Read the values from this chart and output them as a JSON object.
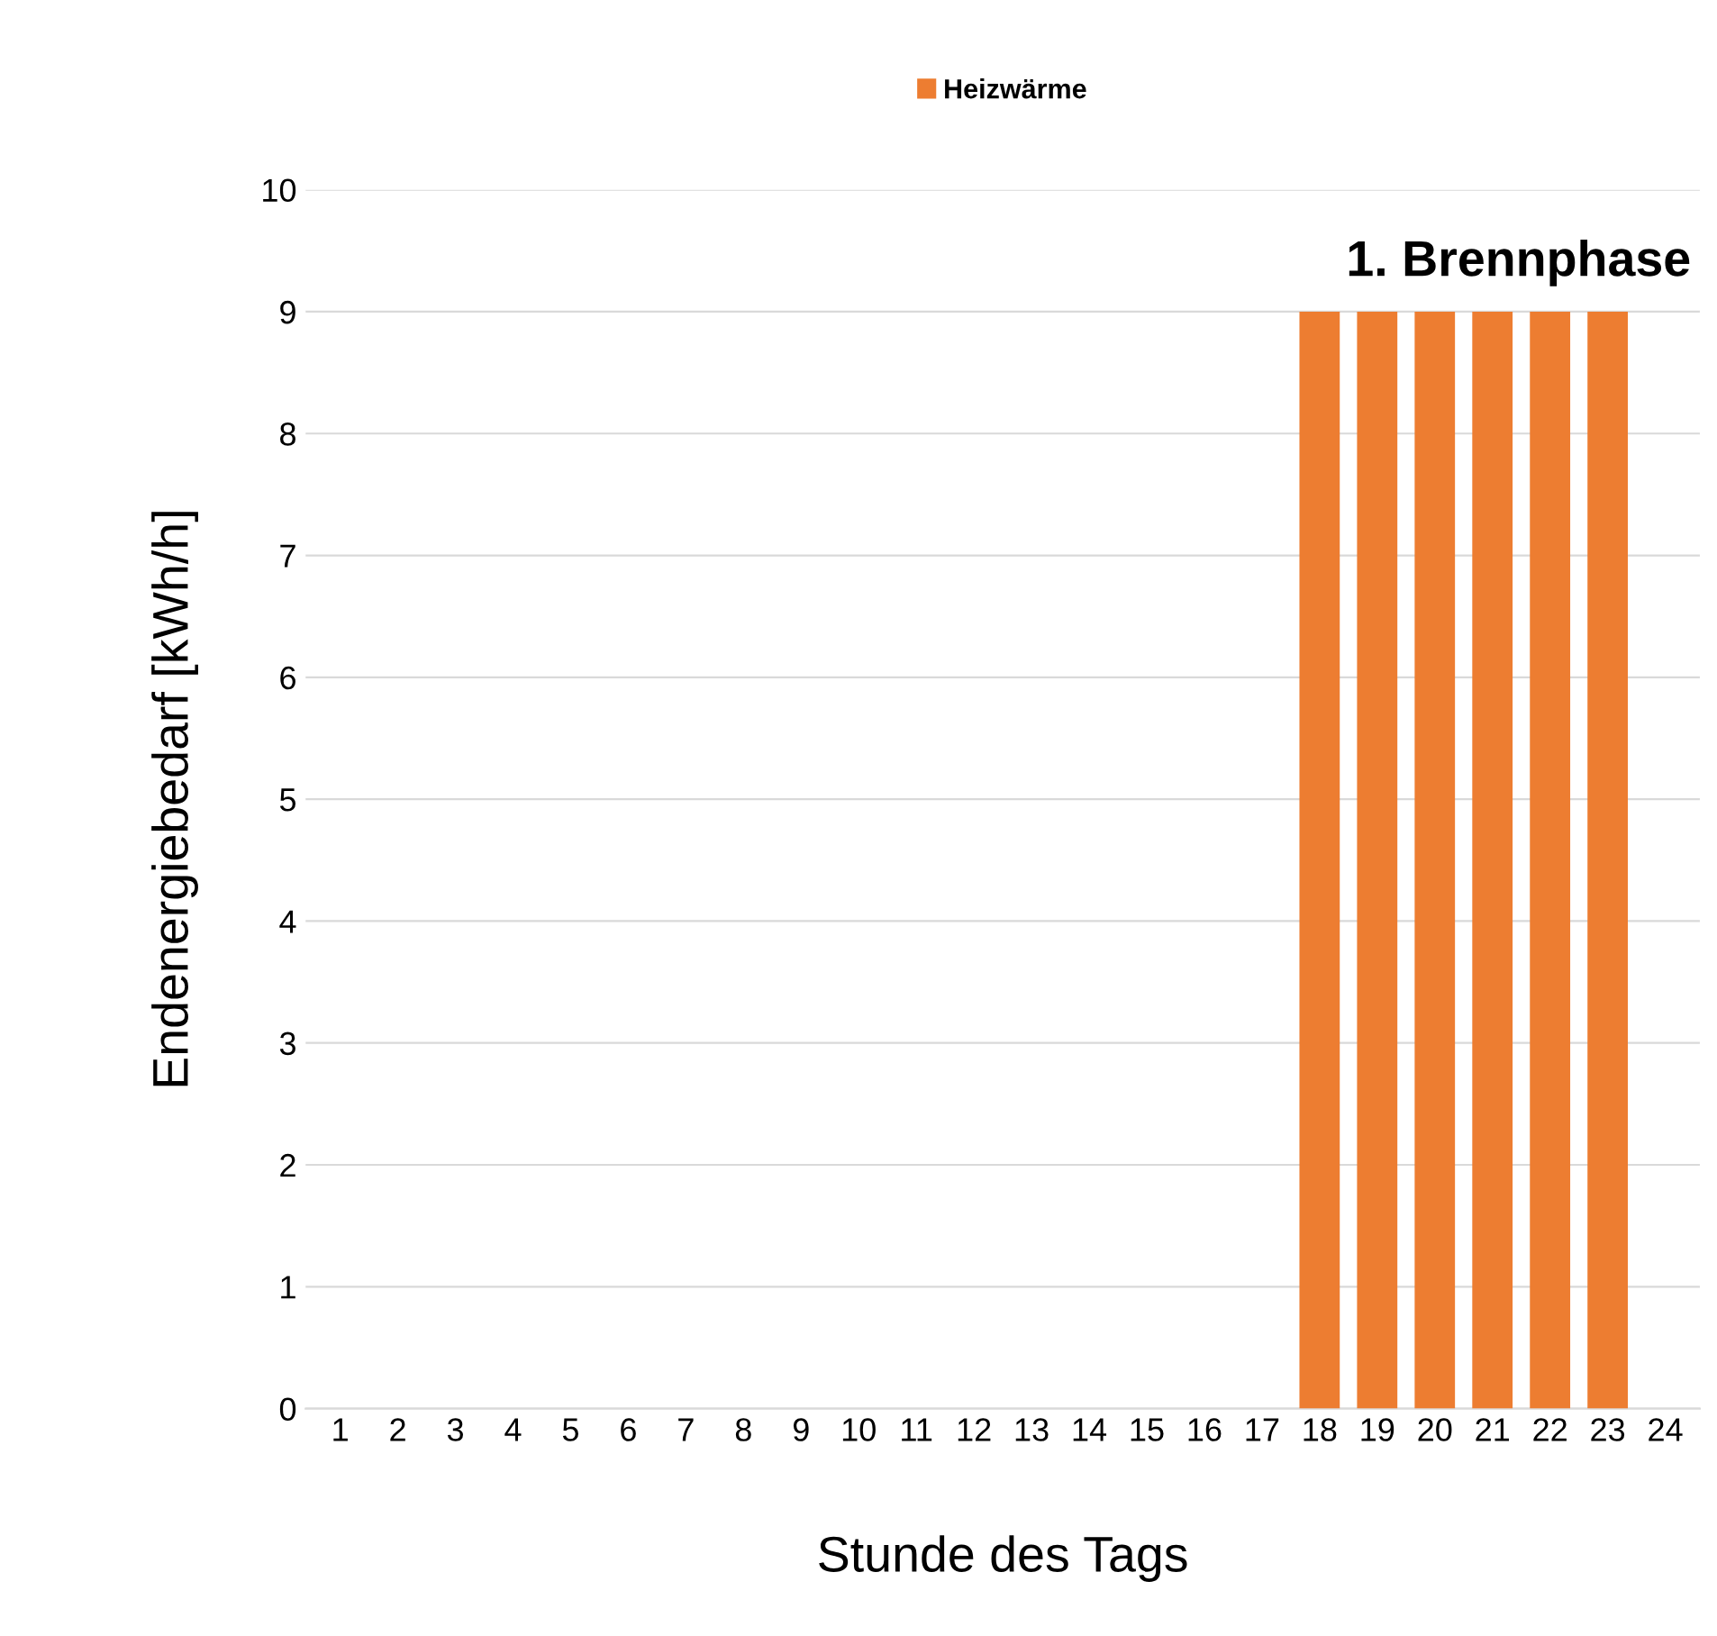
{
  "chart_data": {
    "type": "bar",
    "xlabel": "Stunde des Tags",
    "ylabel": "Endenergiebedarf [kWh/h]",
    "categories": [
      "1",
      "2",
      "3",
      "4",
      "5",
      "6",
      "7",
      "8",
      "9",
      "10",
      "11",
      "12",
      "13",
      "14",
      "15",
      "16",
      "17",
      "18",
      "19",
      "20",
      "21",
      "22",
      "23",
      "24"
    ],
    "series": [
      {
        "name": "Heizwärme",
        "color": "#ed7d31",
        "values": [
          0,
          0,
          0,
          0,
          0,
          0,
          0,
          0,
          0,
          0,
          0,
          0,
          0,
          0,
          0,
          0,
          0,
          9,
          9,
          9,
          9,
          9,
          9,
          0
        ]
      }
    ],
    "annotations": [
      "1. Brennphase"
    ],
    "ylim": [
      0,
      10
    ],
    "yticks": [
      0,
      1,
      2,
      3,
      4,
      5,
      6,
      7,
      8,
      9,
      10
    ],
    "grid": "y",
    "legend": "top"
  }
}
